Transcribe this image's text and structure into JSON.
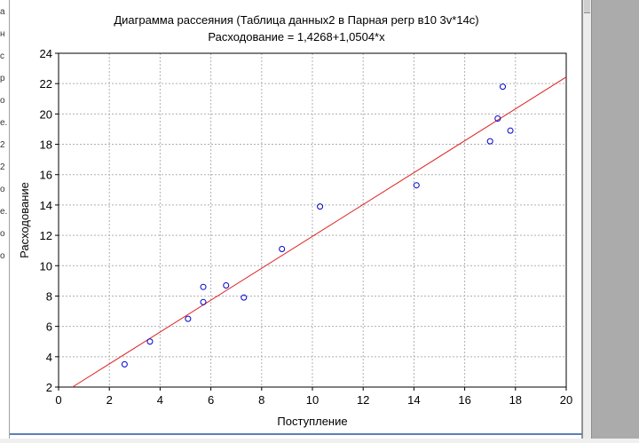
{
  "left_strip_chars": [
    "а",
    "н",
    "с",
    "р",
    "о",
    "е.",
    "2",
    "2",
    "о",
    "е.",
    "о",
    "о"
  ],
  "chart_data": {
    "type": "scatter",
    "title": "Диаграмма рассеяния (Таблица данных2 в Парная регр в10 3v*14c)",
    "subtitle": "Расходование = 1,4268+1,0504*x",
    "xlabel": "Поступление",
    "ylabel": "Расходование",
    "xlim": [
      0,
      20
    ],
    "ylim": [
      2,
      24
    ],
    "xticks": [
      "0",
      "2",
      "4",
      "6",
      "8",
      "10",
      "12",
      "14",
      "16",
      "18",
      "20"
    ],
    "yticks": [
      "2",
      "4",
      "6",
      "8",
      "10",
      "12",
      "14",
      "16",
      "18",
      "20",
      "22",
      "24"
    ],
    "grid": true,
    "points": [
      {
        "x": 2.6,
        "y": 3.5
      },
      {
        "x": 3.6,
        "y": 5.0
      },
      {
        "x": 5.1,
        "y": 6.5
      },
      {
        "x": 5.7,
        "y": 7.6
      },
      {
        "x": 5.7,
        "y": 8.6
      },
      {
        "x": 6.6,
        "y": 8.7
      },
      {
        "x": 7.3,
        "y": 7.9
      },
      {
        "x": 8.8,
        "y": 11.1
      },
      {
        "x": 10.3,
        "y": 13.9
      },
      {
        "x": 14.1,
        "y": 15.3
      },
      {
        "x": 17.0,
        "y": 18.2
      },
      {
        "x": 17.3,
        "y": 19.7
      },
      {
        "x": 17.5,
        "y": 21.8
      },
      {
        "x": 17.8,
        "y": 18.9
      }
    ],
    "regression": {
      "intercept": 1.4268,
      "slope": 1.0504
    },
    "colors": {
      "points": "#0000cc",
      "line": "#e02020",
      "grid": "#b0b0b0"
    }
  }
}
